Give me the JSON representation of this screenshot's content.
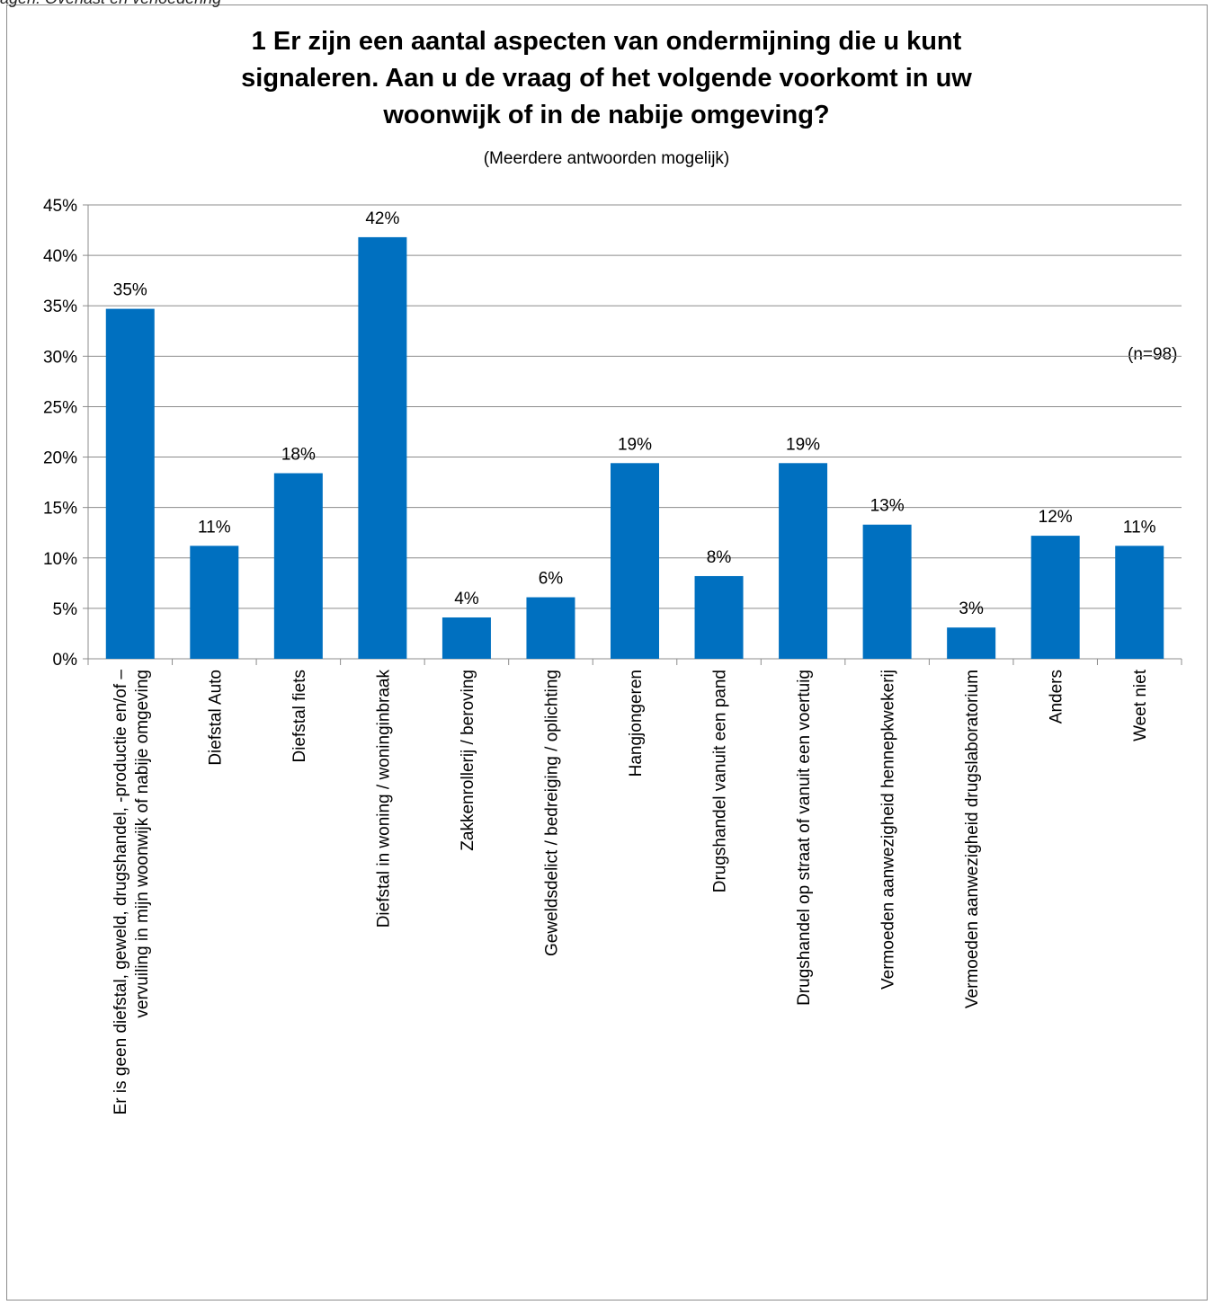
{
  "header_clip": "agen: Overlast en verloedering",
  "chart_data": {
    "type": "bar",
    "title_lines": [
      "1 Er zijn een aantal aspecten van ondermijning die u kunt",
      "signaleren. Aan u de vraag of het volgende voorkomt in uw",
      "woonwijk of in de nabije omgeving?"
    ],
    "subtitle": "(Meerdere antwoorden mogelijk)",
    "annotation": "(n=98)",
    "ylim": [
      0,
      45
    ],
    "ytick_step": 5,
    "yticks": [
      "0%",
      "5%",
      "10%",
      "15%",
      "20%",
      "25%",
      "30%",
      "35%",
      "40%",
      "45%"
    ],
    "grid": true,
    "bar_color": "#0070C0",
    "categories": [
      [
        "Er is geen diefstal, geweld, drugshandel, -productie en/of –",
        "vervuiling in mijn woonwijk of nabije omgeving"
      ],
      [
        "Diefstal Auto"
      ],
      [
        "Diefstal fiets"
      ],
      [
        "Diefstal in woning / woninginbraak"
      ],
      [
        "Zakkenrollerij / beroving"
      ],
      [
        "Geweldsdelict / bedreiging / oplichting"
      ],
      [
        "Hangjongeren"
      ],
      [
        "Drugshandel vanuit een pand"
      ],
      [
        "Drugshandel op straat of vanuit een voertuig"
      ],
      [
        "Vermoeden aanwezigheid hennepkwekerij"
      ],
      [
        "Vermoeden aanwezigheid drugslaboratorium"
      ],
      [
        "Anders"
      ],
      [
        "Weet niet"
      ]
    ],
    "values": [
      34.7,
      11.2,
      18.4,
      41.8,
      4.1,
      6.1,
      19.4,
      8.2,
      19.4,
      13.3,
      3.1,
      12.2,
      11.2
    ],
    "data_labels": [
      "35%",
      "11%",
      "18%",
      "42%",
      "4%",
      "6%",
      "19%",
      "8%",
      "19%",
      "13%",
      "3%",
      "12%",
      "11%"
    ]
  }
}
